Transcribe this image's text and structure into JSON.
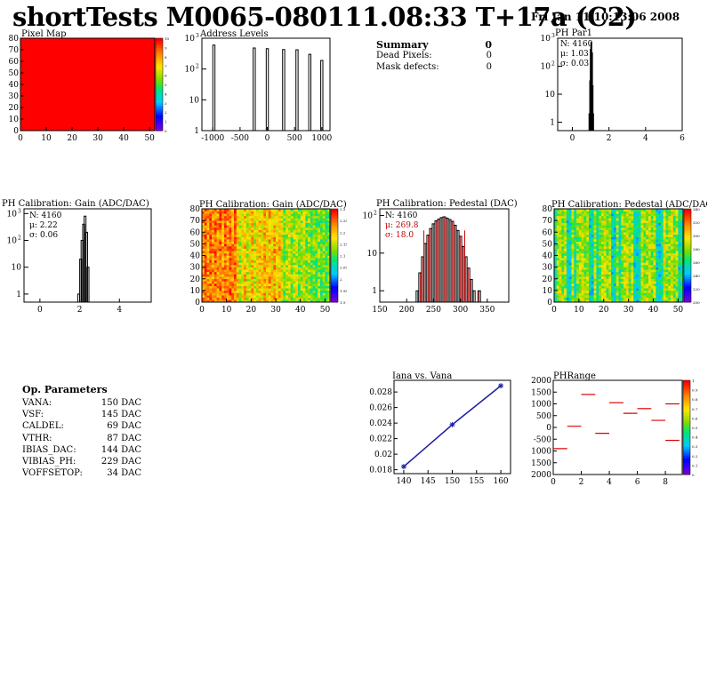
{
  "header": {
    "title": "shortTests M0065-080111.08:33 T+17a (C2)",
    "datetime": "Fri Jan 11 10:13:06 2008"
  },
  "summary": {
    "title": "Summary",
    "title_value": "0",
    "rows": [
      {
        "label": "Dead Pixels:",
        "value": "0"
      },
      {
        "label": "Mask defects:",
        "value": "0"
      }
    ]
  },
  "op_parameters": {
    "title": "Op. Parameters",
    "rows": [
      {
        "name": "VANA:",
        "value": "150 DAC"
      },
      {
        "name": "VSF:",
        "value": "145 DAC"
      },
      {
        "name": "CALDEL:",
        "value": "69 DAC"
      },
      {
        "name": "VTHR:",
        "value": "87 DAC"
      },
      {
        "name": "IBIAS_DAC:",
        "value": "144 DAC"
      },
      {
        "name": "VIBIAS_PH:",
        "value": "229 DAC"
      },
      {
        "name": "VOFFSETOP:",
        "value": "34 DAC"
      }
    ]
  },
  "chart_data": [
    {
      "id": "pixel-map",
      "type": "heatmap",
      "title": "Pixel Map",
      "xlim": [
        0,
        52
      ],
      "ylim": [
        0,
        80
      ],
      "xticks": [
        "0",
        "10",
        "20",
        "30",
        "40",
        "50"
      ],
      "yticks": [
        "0",
        "10",
        "20",
        "30",
        "40",
        "50",
        "60",
        "70",
        "80"
      ],
      "fill_color": "#ff0000",
      "zlim": [
        0,
        10
      ],
      "zticks": [
        "0",
        "1",
        "2",
        "3",
        "4",
        "5",
        "6",
        "7",
        "8",
        "9",
        "10"
      ]
    },
    {
      "id": "address-levels",
      "type": "bar",
      "title": "Address Levels",
      "log_y": true,
      "xlim": [
        -1200,
        1150
      ],
      "ylim": [
        1,
        1000
      ],
      "xticks": [
        "-1000",
        "-500",
        "0",
        "500",
        "1000"
      ],
      "yticks": [
        "1",
        "10",
        "10^2",
        "10^3"
      ],
      "spikes": [
        {
          "x": -980,
          "y": 600
        },
        {
          "x": -240,
          "y": 480
        },
        {
          "x": 0,
          "y": 460
        },
        {
          "x": 300,
          "y": 430
        },
        {
          "x": 545,
          "y": 420
        },
        {
          "x": 780,
          "y": 300
        },
        {
          "x": 1000,
          "y": 190
        }
      ]
    },
    {
      "id": "ph-par1",
      "type": "bar",
      "title": "PH Par1",
      "log_y": true,
      "xlim": [
        -0.8,
        6
      ],
      "ylim": [
        0.5,
        1000
      ],
      "xticks": [
        "0",
        "2",
        "4",
        "6"
      ],
      "yticks": [
        "1",
        "10",
        "10^2",
        "10^3"
      ],
      "stats": {
        "N": "N: 4160",
        "mean": "μ: 1.03",
        "sigma": "σ: 0.03"
      },
      "bins": [
        {
          "x": 0.93,
          "y": 2
        },
        {
          "x": 0.97,
          "y": 30
        },
        {
          "x": 1.0,
          "y": 400
        },
        {
          "x": 1.03,
          "y": 700
        },
        {
          "x": 1.07,
          "y": 300
        },
        {
          "x": 1.1,
          "y": 20
        },
        {
          "x": 1.13,
          "y": 2
        }
      ]
    },
    {
      "id": "gain-hist",
      "type": "bar",
      "title": "PH Calibration: Gain (ADC/DAC)",
      "log_y": true,
      "xlim": [
        -0.8,
        5.6
      ],
      "ylim": [
        0.5,
        1500
      ],
      "xticks": [
        "0",
        "2",
        "4"
      ],
      "yticks": [
        "1",
        "10",
        "10^2",
        "10^3"
      ],
      "stats": {
        "N": "N: 4160",
        "mean": "μ: 2.22",
        "sigma": "σ: 0.06"
      },
      "bins": [
        {
          "x": 1.95,
          "y": 1
        },
        {
          "x": 2.05,
          "y": 20
        },
        {
          "x": 2.12,
          "y": 100
        },
        {
          "x": 2.2,
          "y": 400
        },
        {
          "x": 2.27,
          "y": 800
        },
        {
          "x": 2.35,
          "y": 200
        },
        {
          "x": 2.42,
          "y": 10
        }
      ]
    },
    {
      "id": "gain-map",
      "type": "heatmap",
      "title": "PH Calibration: Gain (ADC/DAC)",
      "xlim": [
        0,
        52
      ],
      "ylim": [
        0,
        80
      ],
      "xticks": [
        "0",
        "10",
        "20",
        "30",
        "40",
        "50"
      ],
      "yticks": [
        "0",
        "10",
        "20",
        "30",
        "40",
        "50",
        "60",
        "70",
        "80"
      ],
      "zticks": [
        "1.9",
        "1.95",
        "2",
        "2.05",
        "2.1",
        "2.15",
        "2.2",
        "2.25",
        "2.3"
      ]
    },
    {
      "id": "pedestal-hist",
      "type": "bar",
      "title": "PH Calibration: Pedestal (DAC)",
      "log_y": true,
      "xlim": [
        150,
        390
      ],
      "ylim": [
        0.5,
        150
      ],
      "xticks": [
        "150",
        "200",
        "250",
        "300",
        "350"
      ],
      "yticks": [
        "1",
        "10",
        "10^2"
      ],
      "stats": {
        "N": "N: 4160",
        "mean": "μ: 269.8",
        "sigma": "σ: 18.0"
      },
      "cut_lines": [
        232,
        308
      ],
      "bins": [
        {
          "x": 220,
          "y": 1
        },
        {
          "x": 225,
          "y": 3
        },
        {
          "x": 230,
          "y": 8
        },
        {
          "x": 235,
          "y": 18
        },
        {
          "x": 240,
          "y": 30
        },
        {
          "x": 245,
          "y": 45
        },
        {
          "x": 250,
          "y": 60
        },
        {
          "x": 255,
          "y": 72
        },
        {
          "x": 260,
          "y": 80
        },
        {
          "x": 265,
          "y": 88
        },
        {
          "x": 270,
          "y": 92
        },
        {
          "x": 275,
          "y": 85
        },
        {
          "x": 280,
          "y": 78
        },
        {
          "x": 285,
          "y": 70
        },
        {
          "x": 290,
          "y": 55
        },
        {
          "x": 295,
          "y": 40
        },
        {
          "x": 300,
          "y": 28
        },
        {
          "x": 305,
          "y": 15
        },
        {
          "x": 310,
          "y": 8
        },
        {
          "x": 315,
          "y": 4
        },
        {
          "x": 320,
          "y": 2
        },
        {
          "x": 325,
          "y": 1
        },
        {
          "x": 335,
          "y": 1
        }
      ]
    },
    {
      "id": "pedestal-map",
      "type": "heatmap",
      "title": "PH Calibration: Pedestal (ADC/DAC)",
      "xlim": [
        0,
        52
      ],
      "ylim": [
        0,
        80
      ],
      "xticks": [
        "0",
        "10",
        "20",
        "30",
        "40",
        "50"
      ],
      "yticks": [
        "0",
        "10",
        "20",
        "30",
        "40",
        "50",
        "60",
        "70",
        "80"
      ],
      "zticks": [
        "200",
        "220",
        "240",
        "260",
        "280",
        "300",
        "320",
        "340"
      ]
    },
    {
      "id": "iana-vana",
      "type": "line",
      "title": "Iana vs. Vana",
      "xlim": [
        138,
        162
      ],
      "ylim": [
        0.0175,
        0.0295
      ],
      "xticks": [
        "140",
        "145",
        "150",
        "155",
        "160"
      ],
      "yticks": [
        "0.018",
        "0.02",
        "0.022",
        "0.024",
        "0.026",
        "0.028"
      ],
      "x": [
        140,
        150,
        160
      ],
      "y": [
        0.0184,
        0.0238,
        0.0288
      ]
    },
    {
      "id": "ph-range",
      "type": "scatter",
      "title": "PHRange",
      "xlim": [
        0,
        9.2
      ],
      "ylim": [
        -2000,
        2000
      ],
      "xticks": [
        "0",
        "2",
        "4",
        "6",
        "8"
      ],
      "yticks": [
        "2000",
        "1500",
        "1000",
        "500",
        "0",
        "-500",
        "1000",
        "1500",
        "2000"
      ],
      "zticks": [
        "0",
        "0.1",
        "0.2",
        "0.3",
        "0.4",
        "0.5",
        "0.6",
        "0.7",
        "0.8",
        "0.9",
        "1"
      ],
      "segments": [
        {
          "x": 0.5,
          "y": -900
        },
        {
          "x": 1.5,
          "y": 50
        },
        {
          "x": 2.5,
          "y": 1400
        },
        {
          "x": 3.5,
          "y": -250
        },
        {
          "x": 4.5,
          "y": 1050
        },
        {
          "x": 5.5,
          "y": 600
        },
        {
          "x": 6.5,
          "y": 800
        },
        {
          "x": 7.5,
          "y": 300
        },
        {
          "x": 8.5,
          "y": -550
        },
        {
          "x": 8.5,
          "y": 1000
        }
      ]
    }
  ]
}
